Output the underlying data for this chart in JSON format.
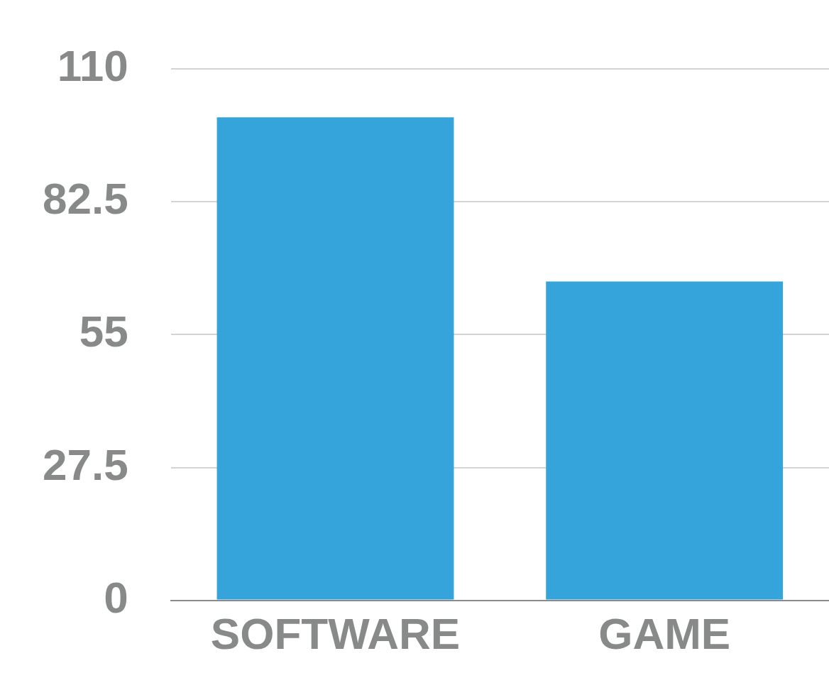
{
  "chart_data": {
    "type": "bar",
    "categories": [
      "SOFTWARE",
      "GAME"
    ],
    "values": [
      100,
      66
    ],
    "color": "#34a4db",
    "ylim": [
      0,
      110
    ],
    "yticks": [
      0,
      27.5,
      55,
      82.5,
      110
    ],
    "grid": "y"
  }
}
